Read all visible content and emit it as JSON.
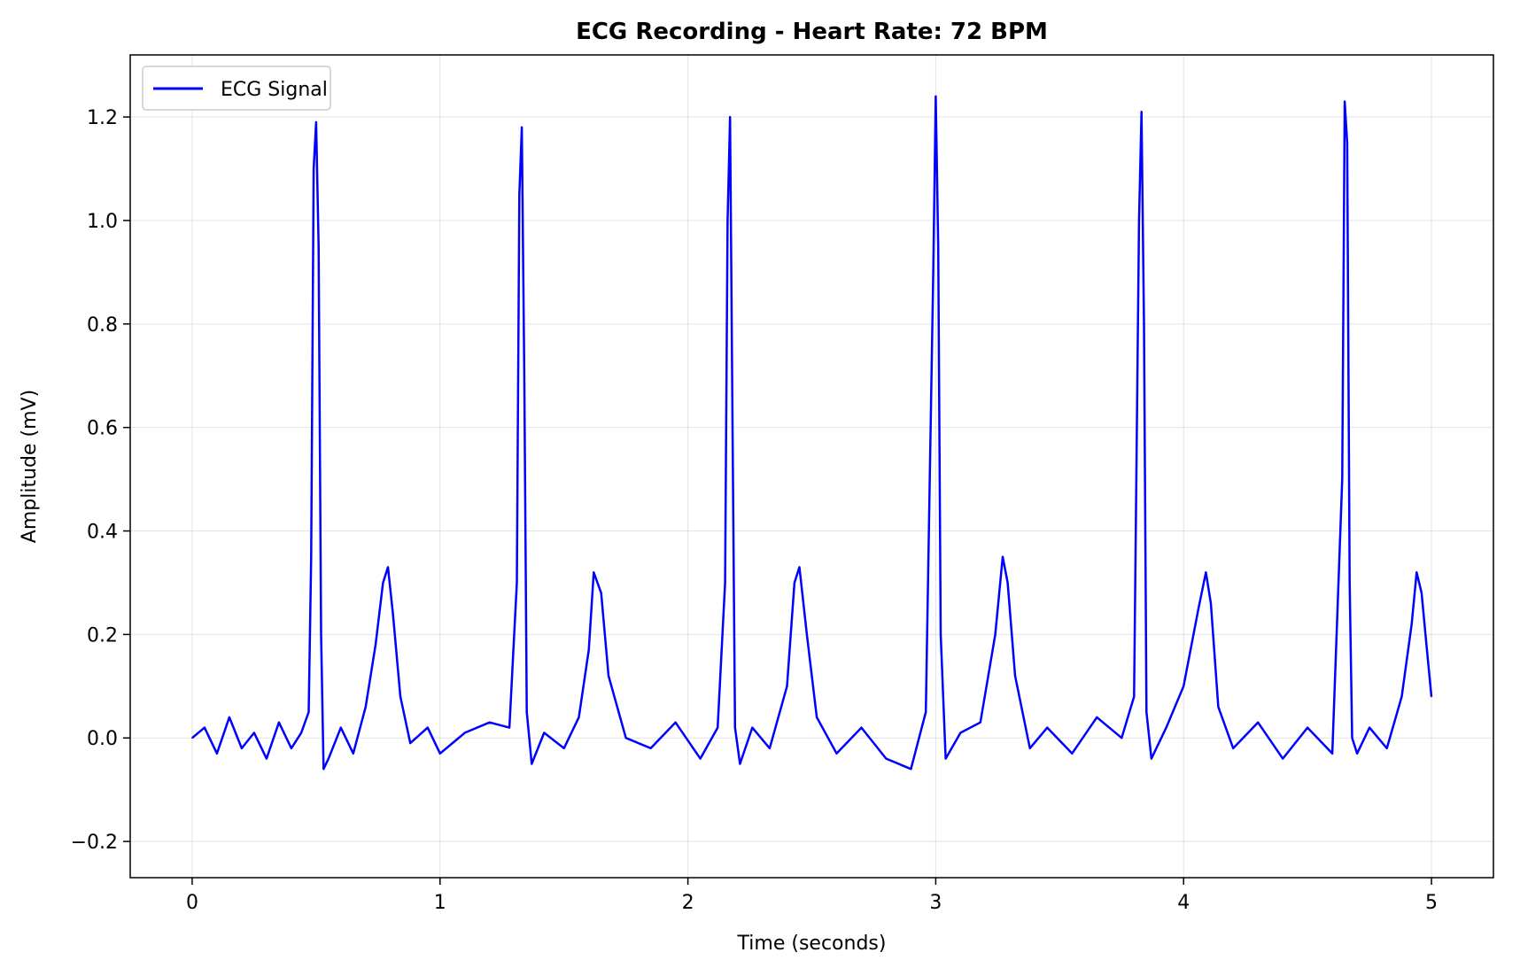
{
  "chart_data": {
    "type": "line",
    "title": "ECG Recording - Heart Rate: 72 BPM",
    "xlabel": "Time (seconds)",
    "ylabel": "Amplitude (mV)",
    "xlim": [
      -0.25,
      5.25
    ],
    "ylim": [
      -0.27,
      1.32
    ],
    "x_ticks": [
      0,
      1,
      2,
      3,
      4,
      5
    ],
    "x_tick_labels": [
      "0",
      "1",
      "2",
      "3",
      "4",
      "5"
    ],
    "y_ticks": [
      -0.2,
      0.0,
      0.2,
      0.4,
      0.6,
      0.8,
      1.0,
      1.2
    ],
    "y_tick_labels": [
      "−0.2",
      "0.0",
      "0.2",
      "0.4",
      "0.6",
      "0.8",
      "1.0",
      "1.2"
    ],
    "grid": true,
    "legend_position": "upper left",
    "series": [
      {
        "name": "ECG Signal",
        "color": "#0000ff",
        "x": [
          0.0,
          0.05,
          0.1,
          0.15,
          0.2,
          0.25,
          0.3,
          0.35,
          0.4,
          0.44,
          0.47,
          0.48,
          0.49,
          0.5,
          0.51,
          0.52,
          0.53,
          0.55,
          0.6,
          0.65,
          0.7,
          0.74,
          0.77,
          0.79,
          0.81,
          0.84,
          0.88,
          0.95,
          1.0,
          1.1,
          1.2,
          1.28,
          1.31,
          1.32,
          1.33,
          1.34,
          1.35,
          1.37,
          1.42,
          1.5,
          1.56,
          1.6,
          1.62,
          1.65,
          1.68,
          1.75,
          1.85,
          1.95,
          2.05,
          2.12,
          2.15,
          2.16,
          2.17,
          2.18,
          2.19,
          2.21,
          2.26,
          2.33,
          2.4,
          2.43,
          2.45,
          2.48,
          2.52,
          2.6,
          2.7,
          2.8,
          2.9,
          2.96,
          2.99,
          3.0,
          3.01,
          3.02,
          3.04,
          3.1,
          3.18,
          3.24,
          3.27,
          3.29,
          3.32,
          3.38,
          3.45,
          3.55,
          3.65,
          3.75,
          3.8,
          3.82,
          3.83,
          3.84,
          3.85,
          3.87,
          3.93,
          4.0,
          4.06,
          4.09,
          4.11,
          4.14,
          4.2,
          4.3,
          4.4,
          4.5,
          4.6,
          4.64,
          4.65,
          4.66,
          4.67,
          4.68,
          4.7,
          4.75,
          4.82,
          4.88,
          4.92,
          4.94,
          4.96,
          4.98,
          5.0
        ],
        "values": [
          0.0,
          0.02,
          -0.03,
          0.04,
          -0.02,
          0.01,
          -0.04,
          0.03,
          -0.02,
          0.01,
          0.05,
          0.35,
          1.1,
          1.19,
          0.95,
          0.2,
          -0.06,
          -0.04,
          0.02,
          -0.03,
          0.06,
          0.18,
          0.3,
          0.33,
          0.24,
          0.08,
          -0.01,
          0.02,
          -0.03,
          0.01,
          0.03,
          0.02,
          0.3,
          1.05,
          1.18,
          0.7,
          0.05,
          -0.05,
          0.01,
          -0.02,
          0.04,
          0.17,
          0.32,
          0.28,
          0.12,
          0.0,
          -0.02,
          0.03,
          -0.04,
          0.02,
          0.3,
          1.0,
          1.2,
          0.6,
          0.02,
          -0.05,
          0.02,
          -0.02,
          0.1,
          0.3,
          0.33,
          0.2,
          0.04,
          -0.03,
          0.02,
          -0.04,
          -0.06,
          0.05,
          0.9,
          1.24,
          0.95,
          0.2,
          -0.04,
          0.01,
          0.03,
          0.2,
          0.35,
          0.3,
          0.12,
          -0.02,
          0.02,
          -0.03,
          0.04,
          0.0,
          0.08,
          1.0,
          1.21,
          0.8,
          0.05,
          -0.04,
          0.02,
          0.1,
          0.25,
          0.32,
          0.26,
          0.06,
          -0.02,
          0.03,
          -0.04,
          0.02,
          -0.03,
          0.5,
          1.23,
          1.15,
          0.3,
          0.0,
          -0.03,
          0.02,
          -0.02,
          0.08,
          0.22,
          0.32,
          0.28,
          0.18,
          0.08
        ]
      }
    ]
  }
}
